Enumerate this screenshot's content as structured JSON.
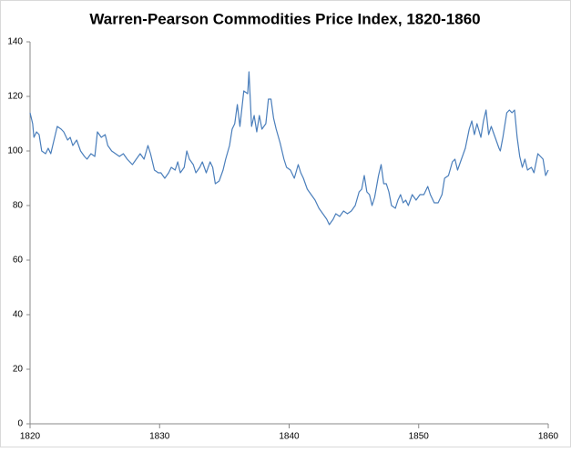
{
  "chart_data": {
    "type": "line",
    "title": "Warren-Pearson Commodities Price Index, 1820-1860",
    "color": "#4a7ebb",
    "xlim": [
      1820,
      1860
    ],
    "xticks": [
      1820,
      1830,
      1840,
      1850,
      1860
    ],
    "ylim": [
      0,
      140
    ],
    "yticks": [
      0,
      20,
      40,
      60,
      80,
      100,
      120,
      140
    ],
    "grid": false,
    "x": [
      1820.0,
      1820.2,
      1820.3,
      1820.5,
      1820.7,
      1820.9,
      1821.2,
      1821.4,
      1821.6,
      1821.9,
      1822.1,
      1822.4,
      1822.6,
      1822.9,
      1823.1,
      1823.3,
      1823.6,
      1823.9,
      1824.2,
      1824.4,
      1824.7,
      1825.0,
      1825.2,
      1825.5,
      1825.8,
      1826.0,
      1826.3,
      1826.6,
      1826.9,
      1827.2,
      1827.5,
      1827.9,
      1828.2,
      1828.5,
      1828.8,
      1829.1,
      1829.3,
      1829.6,
      1829.9,
      1830.1,
      1830.4,
      1830.7,
      1830.9,
      1831.2,
      1831.4,
      1831.6,
      1831.9,
      1832.1,
      1832.3,
      1832.6,
      1832.8,
      1833.1,
      1833.3,
      1833.6,
      1833.9,
      1834.1,
      1834.3,
      1834.6,
      1834.9,
      1835.1,
      1835.4,
      1835.6,
      1835.8,
      1836.0,
      1836.2,
      1836.5,
      1836.8,
      1836.9,
      1837.1,
      1837.3,
      1837.5,
      1837.7,
      1837.9,
      1838.2,
      1838.4,
      1838.6,
      1838.8,
      1839.0,
      1839.3,
      1839.6,
      1839.8,
      1840.1,
      1840.4,
      1840.7,
      1840.9,
      1841.1,
      1841.4,
      1841.7,
      1842.0,
      1842.3,
      1842.6,
      1842.9,
      1843.1,
      1843.4,
      1843.6,
      1843.9,
      1844.2,
      1844.5,
      1844.8,
      1845.1,
      1845.4,
      1845.6,
      1845.8,
      1846.0,
      1846.2,
      1846.4,
      1846.6,
      1846.9,
      1847.1,
      1847.3,
      1847.5,
      1847.7,
      1847.9,
      1848.2,
      1848.4,
      1848.6,
      1848.8,
      1849.0,
      1849.2,
      1849.5,
      1849.8,
      1850.1,
      1850.4,
      1850.7,
      1850.9,
      1851.2,
      1851.5,
      1851.8,
      1852.0,
      1852.3,
      1852.6,
      1852.8,
      1853.0,
      1853.3,
      1853.6,
      1853.9,
      1854.1,
      1854.3,
      1854.5,
      1854.8,
      1855.0,
      1855.2,
      1855.4,
      1855.6,
      1855.9,
      1856.2,
      1856.3,
      1856.5,
      1856.8,
      1857.0,
      1857.2,
      1857.4,
      1857.6,
      1857.8,
      1858.0,
      1858.2,
      1858.4,
      1858.7,
      1858.9,
      1859.2,
      1859.4,
      1859.6,
      1859.8,
      1860.0
    ],
    "values": [
      114,
      110,
      105,
      107,
      106,
      100,
      99,
      101,
      99,
      105,
      109,
      108,
      107,
      104,
      105,
      102,
      104,
      100,
      98,
      97,
      99,
      98,
      107,
      105,
      106,
      102,
      100,
      99,
      98,
      99,
      97,
      95,
      97,
      99,
      97,
      102,
      99,
      93,
      92,
      92,
      90,
      92,
      94,
      93,
      96,
      92,
      94,
      100,
      97,
      95,
      92,
      94,
      96,
      92,
      96,
      94,
      88,
      89,
      93,
      97,
      102,
      108,
      110,
      117,
      109,
      122,
      121,
      129,
      109,
      113,
      107,
      113,
      108,
      110,
      119,
      119,
      112,
      108,
      103,
      97,
      94,
      93,
      90,
      95,
      92,
      90,
      86,
      84,
      82,
      79,
      77,
      75,
      73,
      75,
      77,
      76,
      78,
      77,
      78,
      80,
      85,
      86,
      91,
      85,
      84,
      80,
      83,
      91,
      95,
      88,
      88,
      85,
      80,
      79,
      82,
      84,
      81,
      82,
      80,
      84,
      82,
      84,
      84,
      87,
      84,
      81,
      81,
      84,
      90,
      91,
      96,
      97,
      93,
      97,
      101,
      108,
      111,
      106,
      110,
      105,
      111,
      115,
      106,
      109,
      105,
      101,
      100,
      105,
      114,
      115,
      114,
      115,
      105,
      98,
      94,
      97,
      93,
      94,
      92,
      99,
      98,
      97,
      91,
      93
    ]
  }
}
